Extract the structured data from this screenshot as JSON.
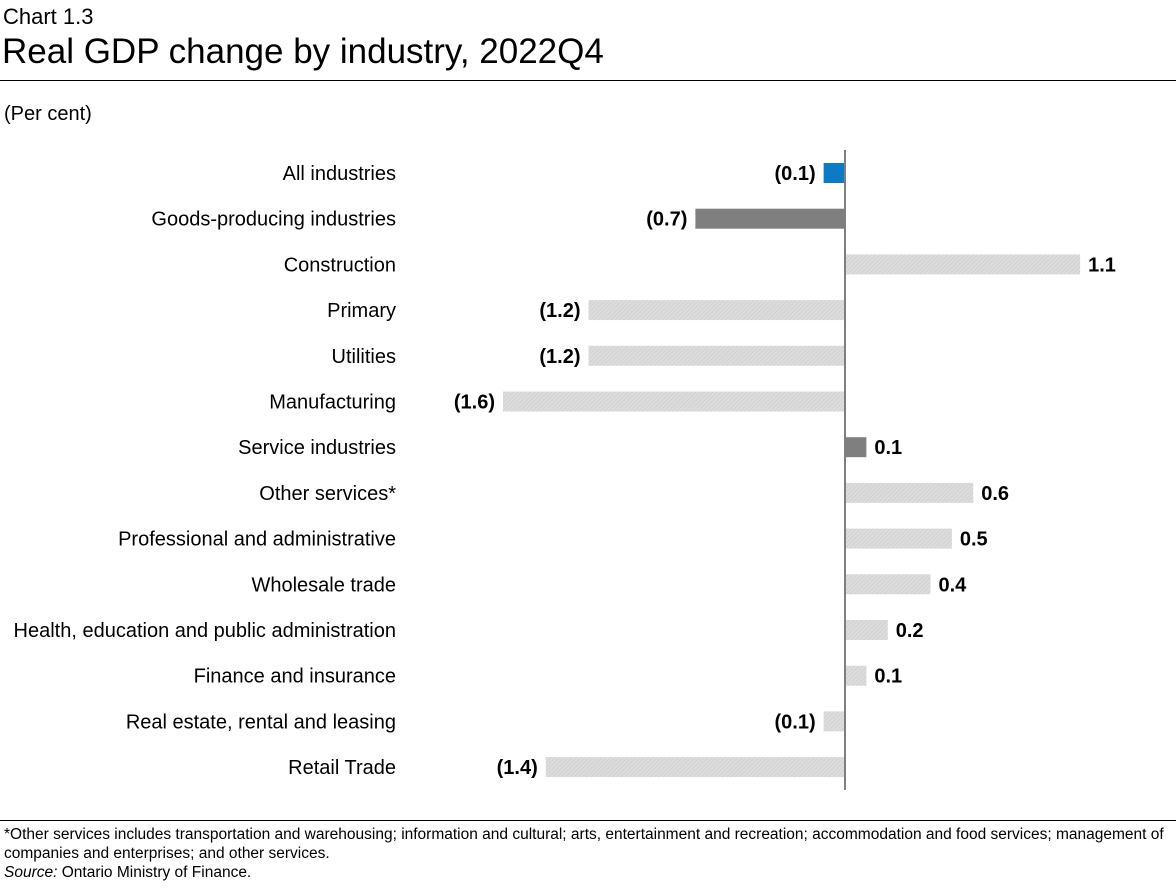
{
  "header": {
    "chart_number": "Chart 1.3",
    "title": "Real GDP change by industry, 2022Q4",
    "unit": "(Per cent)"
  },
  "footer": {
    "footnote": "*Other services includes transportation and warehousing; information and cultural; arts, entertainment and recreation; accommodation and food services; management of companies and enterprises; and other services.",
    "source_prefix": "Source:",
    "source_text": " Ontario Ministry of Finance."
  },
  "colors": {
    "total": "#0a7bc4",
    "aggregate": "#7f7f7f",
    "detail": "#d6d6d6",
    "axis": "#7f7f7f"
  },
  "chart_data": {
    "type": "bar",
    "orientation": "horizontal",
    "title": "Real GDP change by industry, 2022Q4",
    "xlabel": "",
    "ylabel": "(Per cent)",
    "xlim": [
      -1.6,
      1.1
    ],
    "categories": [
      "All industries",
      "Goods-producing industries",
      "Construction",
      "Primary",
      "Utilities",
      "Manufacturing",
      "Service industries",
      "Other services*",
      "Professional and administrative",
      "Wholesale trade",
      "Health, education and public administration",
      "Finance and insurance",
      "Real estate, rental and leasing",
      "Retail Trade"
    ],
    "values": [
      -0.1,
      -0.7,
      1.1,
      -1.2,
      -1.2,
      -1.6,
      0.1,
      0.6,
      0.5,
      0.4,
      0.2,
      0.1,
      -0.1,
      -1.4
    ],
    "value_labels": [
      "(0.1)",
      "(0.7)",
      "1.1",
      "(1.2)",
      "(1.2)",
      "(1.6)",
      "0.1",
      "0.6",
      "0.5",
      "0.4",
      "0.2",
      "0.1",
      "(0.1)",
      "(1.4)"
    ],
    "bar_groups": [
      "total",
      "aggregate",
      "detail",
      "detail",
      "detail",
      "detail",
      "aggregate",
      "detail",
      "detail",
      "detail",
      "detail",
      "detail",
      "detail",
      "detail"
    ]
  }
}
